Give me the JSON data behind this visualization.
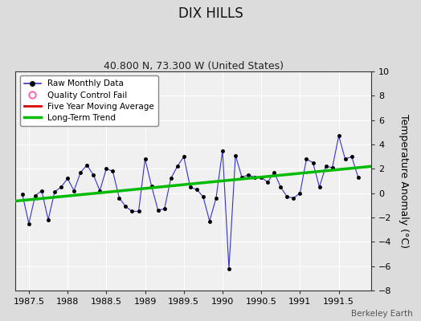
{
  "title": "DIX HILLS",
  "subtitle": "40.800 N, 73.300 W (United States)",
  "ylabel": "Temperature Anomaly (°C)",
  "watermark": "Berkeley Earth",
  "xlim": [
    1987.33,
    1991.92
  ],
  "ylim": [
    -8,
    10
  ],
  "yticks": [
    -8,
    -6,
    -4,
    -2,
    0,
    2,
    4,
    6,
    8,
    10
  ],
  "xticks": [
    1987.5,
    1988.0,
    1988.5,
    1989.0,
    1989.5,
    1990.0,
    1990.5,
    1991.0,
    1991.5
  ],
  "xticklabels": [
    "1987.5",
    "1988",
    "1988.5",
    "1989",
    "1989.5",
    "1990",
    "1990.5",
    "1991",
    "1991.5"
  ],
  "background_color": "#dcdcdc",
  "plot_bg_color": "#f0f0f0",
  "grid_color": "#ffffff",
  "raw_x": [
    1987.417,
    1987.5,
    1987.583,
    1987.667,
    1987.75,
    1987.833,
    1987.917,
    1988.0,
    1988.083,
    1988.167,
    1988.25,
    1988.333,
    1988.417,
    1988.5,
    1988.583,
    1988.667,
    1988.75,
    1988.833,
    1988.917,
    1989.0,
    1989.083,
    1989.167,
    1989.25,
    1989.333,
    1989.417,
    1989.5,
    1989.583,
    1989.667,
    1989.75,
    1989.833,
    1989.917,
    1990.0,
    1990.083,
    1990.167,
    1990.25,
    1990.333,
    1990.417,
    1990.5,
    1990.583,
    1990.667,
    1990.75,
    1990.833,
    1990.917,
    1991.0,
    1991.083,
    1991.167,
    1991.25,
    1991.333,
    1991.417,
    1991.5,
    1991.583,
    1991.667,
    1991.75
  ],
  "raw_y": [
    -0.1,
    -2.5,
    -0.2,
    0.2,
    -2.2,
    0.1,
    0.5,
    1.2,
    0.2,
    1.7,
    2.3,
    1.5,
    0.2,
    2.0,
    1.8,
    -0.4,
    -1.1,
    -1.5,
    -1.5,
    2.8,
    0.6,
    -1.4,
    -1.3,
    1.2,
    2.2,
    3.0,
    0.5,
    0.3,
    -0.3,
    -2.3,
    -0.4,
    3.5,
    -6.2,
    3.1,
    1.3,
    1.5,
    1.3,
    1.3,
    0.9,
    1.7,
    0.5,
    -0.3,
    -0.4,
    0.0,
    2.8,
    2.5,
    0.5,
    2.2,
    2.1,
    4.7,
    2.8,
    3.0,
    1.3
  ],
  "trend_x": [
    1987.33,
    1991.92
  ],
  "trend_y": [
    -0.65,
    2.2
  ],
  "line_color": "#3333cc",
  "marker_color": "#000000",
  "trend_color": "#00bb00",
  "moving_avg_color": "#dd0000",
  "qc_fail_color": "#ff69b4",
  "title_fontsize": 12,
  "subtitle_fontsize": 9,
  "tick_fontsize": 8,
  "ylabel_fontsize": 9
}
